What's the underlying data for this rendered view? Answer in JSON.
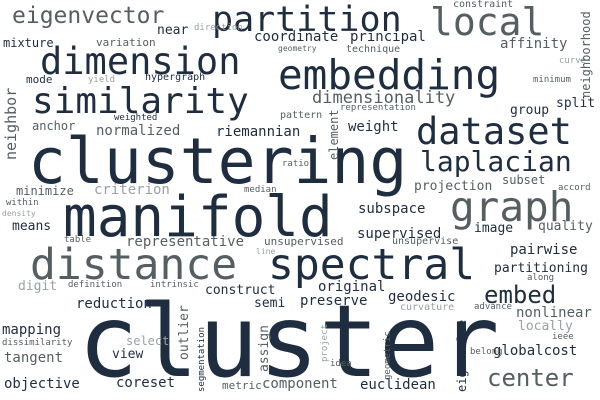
{
  "palette": {
    "dark": "#1f2d40",
    "mid": "#555e61",
    "light": "#9aa0a3",
    "background": "#ffffff"
  },
  "words": {
    "cluster": "cluster",
    "clustering": "clustering",
    "manifold": "manifold",
    "distance": "distance",
    "spectral": "spectral",
    "embedding": "embedding",
    "dimension": "dimension",
    "partition": "partition",
    "local": "local",
    "similarity": "similarity",
    "dataset": "dataset",
    "graph": "graph",
    "laplacian": "laplacian",
    "eigenvector": "eigenvector",
    "center": "center",
    "embed": "embed",
    "dimensionality": "dimensionality",
    "coordinate": "coordinate",
    "principal": "principal",
    "affinity": "affinity",
    "neighborhood": "neighborhood",
    "mixture": "mixture",
    "variation": "variation",
    "near": "near",
    "direction": "direction",
    "geometry": "geometry",
    "technique": "technique",
    "constraint": "constraint",
    "mode": "mode",
    "yield": "yield",
    "hypergraph": "hypergraph",
    "minimum": "minimum",
    "curve": "curve",
    "group": "group",
    "split": "split",
    "representation": "representation",
    "neighbor": "neighbor",
    "anchor": "anchor",
    "weighted": "weighted",
    "pattern": "pattern",
    "normalized": "normalized",
    "riemannian": "riemannian",
    "weight": "weight",
    "element": "element",
    "ratio": "ratio",
    "subset": "subset",
    "accord": "accord",
    "projection": "projection",
    "minimize": "minimize",
    "criterion": "criterion",
    "median": "median",
    "within": "within",
    "density": "density",
    "quality": "quality",
    "subspace": "subspace",
    "means": "means",
    "image": "image",
    "supervised": "supervised",
    "table": "table",
    "representative": "representative",
    "unsupervised": "unsupervised",
    "unsupervise": "unsupervise",
    "line": "line",
    "pairwise": "pairwise",
    "partitioning": "partitioning",
    "digit": "digit",
    "definition": "definition",
    "intrinsic": "intrinsic",
    "construct": "construct",
    "original": "original",
    "along": "along",
    "reduction": "reduction",
    "semi": "semi",
    "preserve": "preserve",
    "geodesic": "geodesic",
    "curvature": "curvature",
    "advance": "advance",
    "nonlinear": "nonlinear",
    "mapping": "mapping",
    "dissimilarity": "dissimilarity",
    "select": "select",
    "outlier": "outlier",
    "segmentation": "segmentation",
    "assign": "assign",
    "project": "project",
    "geometric": "geometric",
    "eigenvalue": "eigenvalue",
    "locally": "locally",
    "ieee": "ieee",
    "belong": "belong",
    "tangent": "tangent",
    "view": "view",
    "idea": "idea",
    "globalcost": "globalcost",
    "objective": "objective",
    "coreset": "coreset",
    "metric": "metric",
    "component": "component",
    "euclidean": "euclidean"
  }
}
